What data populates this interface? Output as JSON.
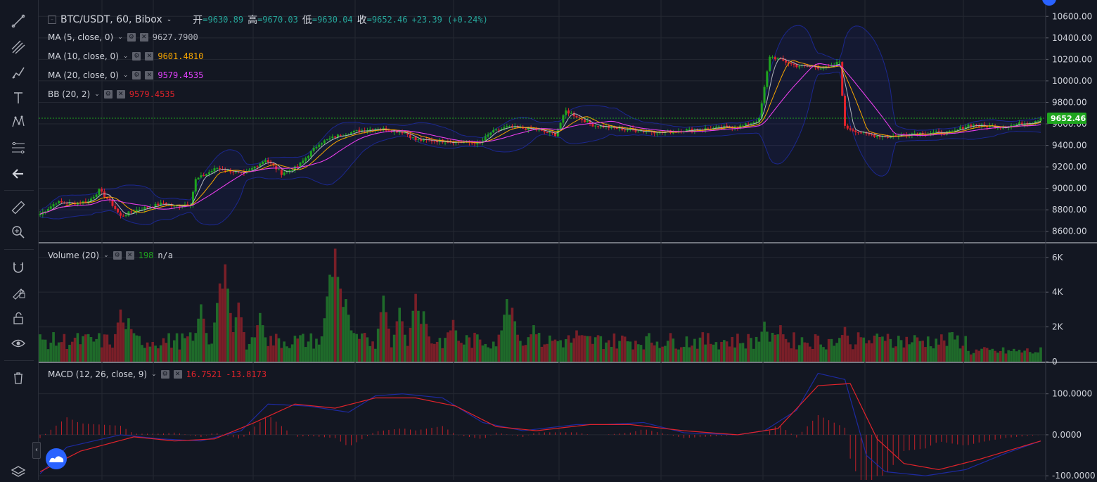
{
  "header": {
    "symbol": "BTC/USDT, 60, Bibox",
    "ohlc": [
      {
        "label": "开",
        "value": "9630.89"
      },
      {
        "label": "高",
        "value": "9670.03"
      },
      {
        "label": "低",
        "value": "9630.04"
      },
      {
        "label": "收",
        "value": "9652.46"
      }
    ],
    "change": "+23.39 (+0.24%)"
  },
  "indicators": [
    {
      "name": "MA (5, close, 0)",
      "values": [
        "9627.7900"
      ],
      "colors": [
        "#b2b5be"
      ]
    },
    {
      "name": "MA (10, close, 0)",
      "values": [
        "9601.4810"
      ],
      "colors": [
        "#f7a600"
      ]
    },
    {
      "name": "MA (20, close, 0)",
      "values": [
        "9579.4535"
      ],
      "colors": [
        "#e040fb"
      ]
    },
    {
      "name": "BB (20, 2)",
      "values": [
        "9579.4535"
      ],
      "colors": [
        "#e0232b"
      ]
    }
  ],
  "volume_legend": {
    "name": "Volume (20)",
    "value": "198",
    "extra": "n/a"
  },
  "macd_legend": {
    "name": "MACD (12, 26, close, 9)",
    "values": [
      "16.7521",
      "-13.8173"
    ],
    "colors": [
      "#e0232b",
      "#e0232b"
    ]
  },
  "last_price_label": "9652.46",
  "colors": {
    "up": "#26a69a",
    "up_bar": "#1fa51f",
    "down": "#e0232b",
    "bb": "#1d2aa0",
    "ma5": "#b2b5be",
    "ma10": "#f7a600",
    "ma20": "#e040fb",
    "macd": "#1d2aa0",
    "signal": "#e0232b"
  },
  "chart_data": [
    {
      "type": "candlestick",
      "title": "BTC/USDT, 60, Bibox",
      "ylim": [
        8500,
        10700
      ],
      "yticks": [
        "10600.00",
        "10400.00",
        "10200.00",
        "10000.00",
        "9800.00",
        "9600.00",
        "9400.00",
        "9200.00",
        "9000.00",
        "8800.00",
        "8600.00"
      ],
      "ytick_values": [
        10600,
        10400,
        10200,
        10000,
        9800,
        9600,
        9400,
        9200,
        9000,
        8800,
        8600
      ],
      "close_anchors": [
        [
          0,
          8760
        ],
        [
          6,
          8870
        ],
        [
          12,
          8860
        ],
        [
          18,
          8880
        ],
        [
          22,
          8980
        ],
        [
          26,
          8880
        ],
        [
          30,
          8740
        ],
        [
          36,
          8800
        ],
        [
          46,
          8860
        ],
        [
          50,
          8830
        ],
        [
          56,
          8860
        ],
        [
          58,
          9080
        ],
        [
          66,
          9190
        ],
        [
          76,
          9130
        ],
        [
          84,
          9270
        ],
        [
          90,
          9140
        ],
        [
          96,
          9200
        ],
        [
          104,
          9420
        ],
        [
          112,
          9500
        ],
        [
          120,
          9540
        ],
        [
          126,
          9560
        ],
        [
          136,
          9520
        ],
        [
          140,
          9450
        ],
        [
          150,
          9440
        ],
        [
          164,
          9420
        ],
        [
          168,
          9520
        ],
        [
          174,
          9570
        ],
        [
          184,
          9550
        ],
        [
          192,
          9500
        ],
        [
          196,
          9720
        ],
        [
          206,
          9590
        ],
        [
          214,
          9560
        ],
        [
          222,
          9540
        ],
        [
          232,
          9520
        ],
        [
          240,
          9540
        ],
        [
          252,
          9560
        ],
        [
          262,
          9580
        ],
        [
          268,
          9640
        ],
        [
          272,
          10230
        ],
        [
          282,
          10140
        ],
        [
          294,
          10120
        ],
        [
          298,
          10180
        ],
        [
          300,
          9570
        ],
        [
          308,
          9500
        ],
        [
          316,
          9480
        ],
        [
          324,
          9510
        ],
        [
          340,
          9520
        ],
        [
          346,
          9590
        ],
        [
          358,
          9570
        ],
        [
          370,
          9620
        ],
        [
          373,
          9652
        ]
      ],
      "last_close": 9652.46
    },
    {
      "type": "bar",
      "title": "Volume (20)",
      "ylim": [
        0,
        6800
      ],
      "yticks": [
        "6K",
        "4K",
        "2K",
        "0"
      ],
      "ytick_values": [
        6000,
        4000,
        2000,
        0
      ],
      "spikes": [
        [
          30,
          3000
        ],
        [
          33,
          2500
        ],
        [
          60,
          3300
        ],
        [
          67,
          4500
        ],
        [
          69,
          5600
        ],
        [
          74,
          3400
        ],
        [
          82,
          2800
        ],
        [
          108,
          5000
        ],
        [
          110,
          6500
        ],
        [
          112,
          4200
        ],
        [
          114,
          3600
        ],
        [
          128,
          3800
        ],
        [
          134,
          3100
        ],
        [
          140,
          3900
        ],
        [
          143,
          2900
        ],
        [
          154,
          2400
        ],
        [
          174,
          3600
        ],
        [
          176,
          3100
        ],
        [
          184,
          2100
        ],
        [
          200,
          1800
        ],
        [
          270,
          2300
        ],
        [
          276,
          2100
        ],
        [
          300,
          2000
        ],
        [
          316,
          1600
        ],
        [
          340,
          1700
        ],
        [
          370,
          450
        ],
        [
          373,
          200
        ]
      ]
    },
    {
      "type": "line",
      "title": "MACD (12, 26, close, 9)",
      "ylim": [
        -110,
        175
      ],
      "yticks": [
        "100.0000",
        "0.0000",
        "-100.0000"
      ],
      "ytick_values": [
        100,
        0,
        -100
      ],
      "series": [
        {
          "name": "MACD",
          "points": [
            [
              0,
              -95
            ],
            [
              10,
              -30
            ],
            [
              30,
              0
            ],
            [
              45,
              -10
            ],
            [
              60,
              -15
            ],
            [
              75,
              10
            ],
            [
              85,
              75
            ],
            [
              100,
              70
            ],
            [
              115,
              55
            ],
            [
              125,
              95
            ],
            [
              135,
              100
            ],
            [
              150,
              90
            ],
            [
              165,
              30
            ],
            [
              180,
              10
            ],
            [
              200,
              25
            ],
            [
              210,
              25
            ],
            [
              225,
              30
            ],
            [
              240,
              5
            ],
            [
              260,
              0
            ],
            [
              270,
              10
            ],
            [
              282,
              60
            ],
            [
              290,
              150
            ],
            [
              300,
              135
            ],
            [
              308,
              -50
            ],
            [
              315,
              -90
            ],
            [
              330,
              -100
            ],
            [
              345,
              -85
            ],
            [
              360,
              -45
            ],
            [
              373,
              -15
            ]
          ]
        },
        {
          "name": "Signal",
          "points": [
            [
              0,
              -90
            ],
            [
              15,
              -40
            ],
            [
              35,
              -5
            ],
            [
              50,
              -15
            ],
            [
              65,
              -10
            ],
            [
              80,
              30
            ],
            [
              95,
              75
            ],
            [
              110,
              65
            ],
            [
              125,
              90
            ],
            [
              140,
              90
            ],
            [
              155,
              70
            ],
            [
              170,
              20
            ],
            [
              185,
              10
            ],
            [
              205,
              25
            ],
            [
              220,
              25
            ],
            [
              240,
              10
            ],
            [
              260,
              0
            ],
            [
              275,
              15
            ],
            [
              290,
              120
            ],
            [
              302,
              125
            ],
            [
              312,
              -10
            ],
            [
              322,
              -70
            ],
            [
              335,
              -85
            ],
            [
              350,
              -60
            ],
            [
              373,
              -15
            ]
          ]
        }
      ]
    }
  ]
}
